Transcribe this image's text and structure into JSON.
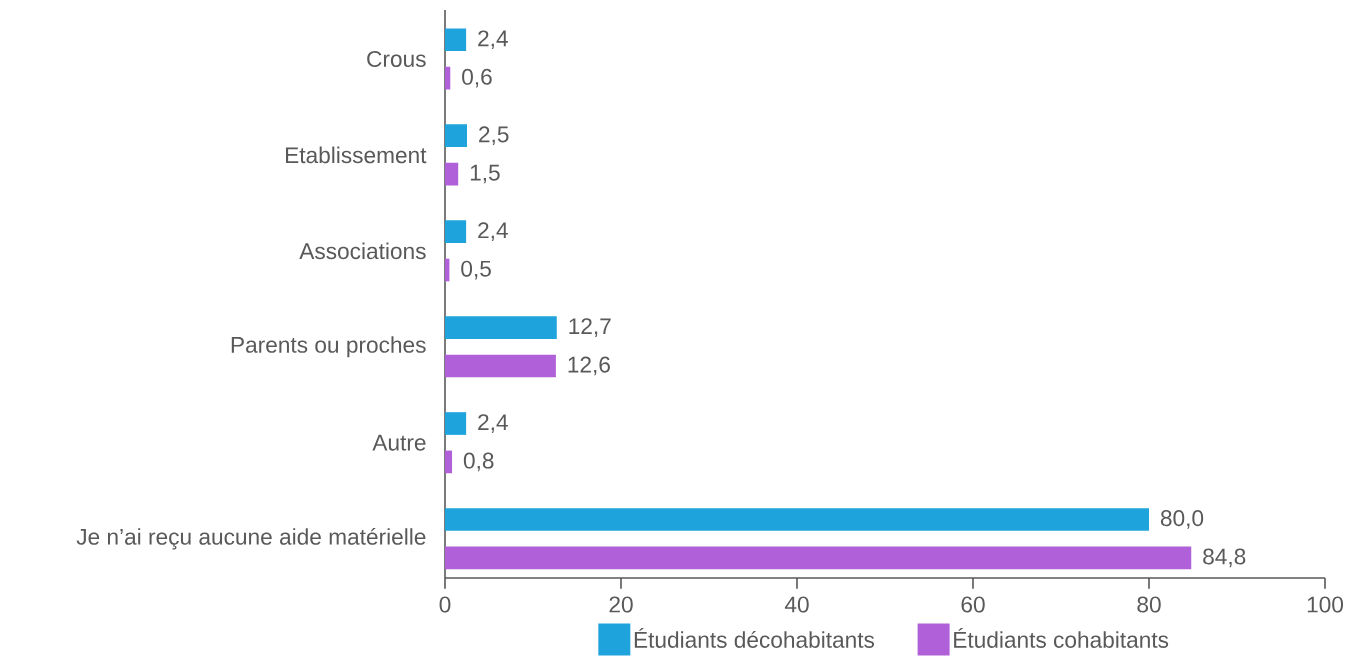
{
  "chart_data": {
    "type": "bar",
    "orientation": "horizontal",
    "categories": [
      "Crous",
      "Etablissement",
      "Associations",
      "Parents ou proches",
      "Autre",
      "Je n’ai reçu aucune aide matérielle"
    ],
    "series": [
      {
        "name": "Étudiants décohabitants",
        "color": "#1fa3dd",
        "values": [
          2.4,
          2.5,
          2.4,
          12.7,
          2.4,
          80.0
        ],
        "value_labels": [
          "2,4",
          "2,5",
          "2,4",
          "12,7",
          "2,4",
          "80,0"
        ]
      },
      {
        "name": "Étudiants cohabitants",
        "color": "#b060d8",
        "values": [
          0.6,
          1.5,
          0.5,
          12.6,
          0.8,
          84.8
        ],
        "value_labels": [
          "0,6",
          "1,5",
          "0,5",
          "12,6",
          "0,8",
          "84,8"
        ]
      }
    ],
    "xlim": [
      0,
      100
    ],
    "xticks": [
      0,
      20,
      40,
      60,
      80,
      100
    ],
    "legend": "bottom"
  }
}
